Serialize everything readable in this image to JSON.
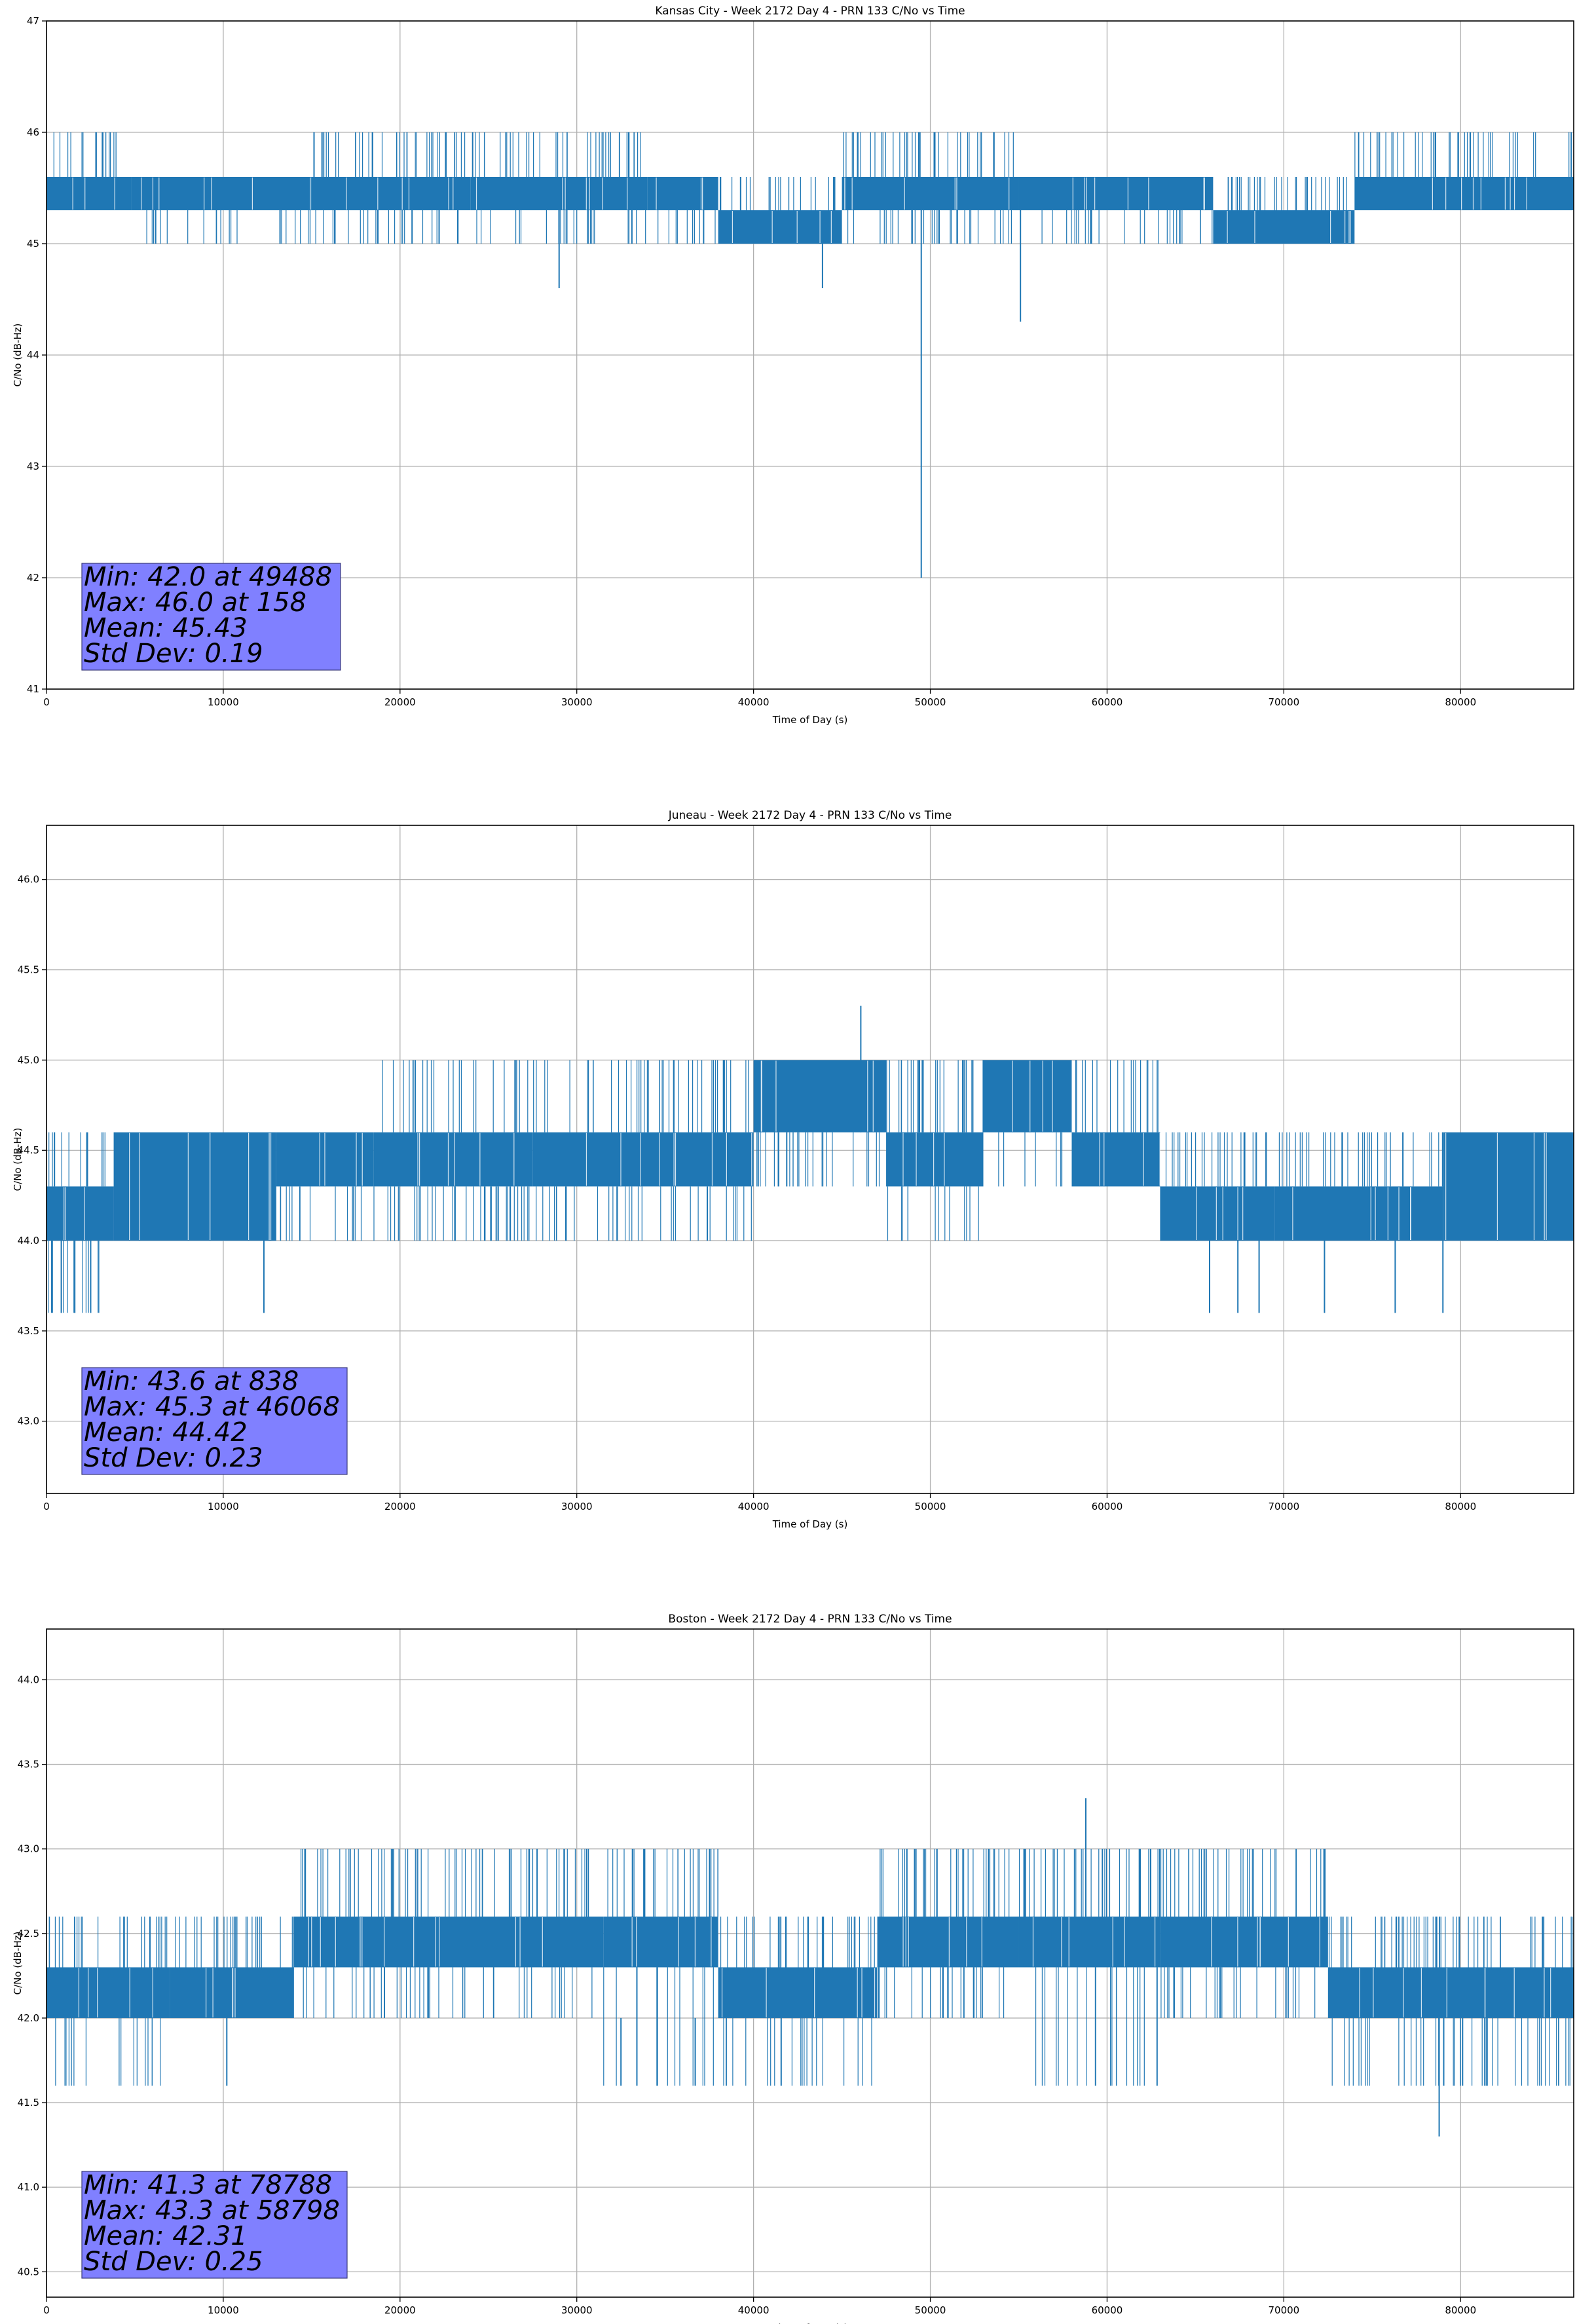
{
  "figure": {
    "colors": {
      "series": "#1f77b4",
      "stats_box": "#8080ff",
      "grid": "#b0b0b0"
    }
  },
  "chart_data": [
    {
      "type": "line",
      "title": "Kansas City - Week 2172 Day 4 - PRN 133 C/No vs Time",
      "xlabel": "Time of Day (s)",
      "ylabel": "C/No (dB-Hz)",
      "xlim": [
        0,
        86400
      ],
      "ylim": [
        41,
        47
      ],
      "xticks": [
        0,
        10000,
        20000,
        30000,
        40000,
        50000,
        60000,
        70000,
        80000
      ],
      "xtick_labels": [
        "0",
        "10000",
        "20000",
        "30000",
        "40000",
        "50000",
        "60000",
        "70000",
        "80000"
      ],
      "yticks": [
        41,
        42,
        43,
        44,
        45,
        46,
        47
      ],
      "ytick_labels": [
        "41",
        "42",
        "43",
        "44",
        "45",
        "46",
        "47"
      ],
      "grid": true,
      "series": [
        {
          "color": "#1f77b4",
          "levels": [
            45.0,
            45.3,
            45.6,
            46.0
          ],
          "segments": [
            {
              "x": [
                0,
                4800
              ],
              "low": 45.3,
              "high": 45.6,
              "spike_high": 46.0,
              "spike_low": 45.3
            },
            {
              "x": [
                4800,
                15000
              ],
              "low": 45.3,
              "high": 45.6,
              "spike_high": 45.6,
              "spike_low": 45.0
            },
            {
              "x": [
                15000,
                24000
              ],
              "low": 45.3,
              "high": 45.6,
              "spike_high": 46.0,
              "spike_low": 45.0
            },
            {
              "x": [
                24000,
                34000
              ],
              "low": 45.3,
              "high": 45.6,
              "spike_high": 46.0,
              "spike_low": 45.0
            },
            {
              "x": [
                34000,
                38000
              ],
              "low": 45.3,
              "high": 45.6,
              "spike_high": 45.6,
              "spike_low": 45.0
            },
            {
              "x": [
                38000,
                45000
              ],
              "low": 45.0,
              "high": 45.3,
              "spike_high": 45.6,
              "spike_low": 45.0
            },
            {
              "x": [
                45000,
                55000
              ],
              "low": 45.3,
              "high": 45.6,
              "spike_high": 46.0,
              "spike_low": 45.0
            },
            {
              "x": [
                55000,
                66000
              ],
              "low": 45.3,
              "high": 45.6,
              "spike_high": 45.6,
              "spike_low": 45.0
            },
            {
              "x": [
                66000,
                74000
              ],
              "low": 45.0,
              "high": 45.3,
              "spike_high": 45.6,
              "spike_low": 45.0
            },
            {
              "x": [
                74000,
                86400
              ],
              "low": 45.3,
              "high": 45.6,
              "spike_high": 46.0,
              "spike_low": 45.3
            }
          ],
          "dips": [
            {
              "x": 29000,
              "y": 44.6
            },
            {
              "x": 43900,
              "y": 44.6
            },
            {
              "x": 49488,
              "y": 42.0
            },
            {
              "x": 55100,
              "y": 44.3
            }
          ],
          "peaks": []
        }
      ],
      "annotation": {
        "lines": [
          "Min: 42.0 at 49488",
          "Max: 46.0 at 158",
          "Mean: 45.43",
          "Std Dev: 0.19"
        ],
        "min": {
          "value": 42.0,
          "time": 49488
        },
        "max": {
          "value": 46.0,
          "time": 158
        },
        "mean": 45.43,
        "std_dev": 0.19
      }
    },
    {
      "type": "line",
      "title": "Juneau - Week 2172 Day 4 - PRN 133 C/No vs Time",
      "xlabel": "Time of Day (s)",
      "ylabel": "C/No (dB-Hz)",
      "xlim": [
        0,
        86400
      ],
      "ylim": [
        42.6,
        46.3
      ],
      "xticks": [
        0,
        10000,
        20000,
        30000,
        40000,
        50000,
        60000,
        70000,
        80000
      ],
      "xtick_labels": [
        "0",
        "10000",
        "20000",
        "30000",
        "40000",
        "50000",
        "60000",
        "70000",
        "80000"
      ],
      "yticks": [
        43.0,
        43.5,
        44.0,
        44.5,
        45.0,
        45.5,
        46.0
      ],
      "ytick_labels": [
        "43.0",
        "43.5",
        "44.0",
        "44.5",
        "45.0",
        "45.5",
        "46.0"
      ],
      "grid": true,
      "series": [
        {
          "color": "#1f77b4",
          "levels": [
            43.6,
            44.0,
            44.3,
            44.6,
            45.0
          ],
          "segments": [
            {
              "x": [
                0,
                3800
              ],
              "low": 44.0,
              "high": 44.3,
              "spike_high": 44.6,
              "spike_low": 43.6
            },
            {
              "x": [
                3800,
                13000
              ],
              "low": 44.0,
              "high": 44.6,
              "spike_high": 44.6,
              "spike_low": 44.0
            },
            {
              "x": [
                13000,
                18500
              ],
              "low": 44.3,
              "high": 44.6,
              "spike_high": 44.6,
              "spike_low": 44.0
            },
            {
              "x": [
                18500,
                27500
              ],
              "low": 44.3,
              "high": 44.6,
              "spike_high": 45.0,
              "spike_low": 44.0
            },
            {
              "x": [
                27500,
                40000
              ],
              "low": 44.3,
              "high": 44.6,
              "spike_high": 45.0,
              "spike_low": 44.0
            },
            {
              "x": [
                40000,
                47500
              ],
              "low": 44.6,
              "high": 45.0,
              "spike_high": 45.0,
              "spike_low": 44.3
            },
            {
              "x": [
                47500,
                53000
              ],
              "low": 44.3,
              "high": 44.6,
              "spike_high": 45.0,
              "spike_low": 44.0
            },
            {
              "x": [
                53000,
                58000
              ],
              "low": 44.6,
              "high": 45.0,
              "spike_high": 45.0,
              "spike_low": 44.3
            },
            {
              "x": [
                58000,
                63000
              ],
              "low": 44.3,
              "high": 44.6,
              "spike_high": 45.0,
              "spike_low": 44.3
            },
            {
              "x": [
                63000,
                69500
              ],
              "low": 44.0,
              "high": 44.3,
              "spike_high": 44.6,
              "spike_low": 44.0
            },
            {
              "x": [
                69500,
                79000
              ],
              "low": 44.0,
              "high": 44.3,
              "spike_high": 44.6,
              "spike_low": 44.0
            },
            {
              "x": [
                79000,
                86400
              ],
              "low": 44.0,
              "high": 44.6,
              "spike_high": 44.6,
              "spike_low": 44.0
            }
          ],
          "dips": [
            {
              "x": 838,
              "y": 43.6
            },
            {
              "x": 1600,
              "y": 43.6
            },
            {
              "x": 2500,
              "y": 43.6
            },
            {
              "x": 12300,
              "y": 43.6
            },
            {
              "x": 65800,
              "y": 43.6
            },
            {
              "x": 67400,
              "y": 43.6
            },
            {
              "x": 68600,
              "y": 43.6
            },
            {
              "x": 72300,
              "y": 43.6
            },
            {
              "x": 76300,
              "y": 43.6
            },
            {
              "x": 79000,
              "y": 43.6
            }
          ],
          "peaks": [
            {
              "x": 46068,
              "y": 45.3
            }
          ]
        }
      ],
      "annotation": {
        "lines": [
          "Min: 43.6 at 838",
          "Max: 45.3 at 46068",
          "Mean: 44.42",
          "Std Dev: 0.23"
        ],
        "min": {
          "value": 43.6,
          "time": 838
        },
        "max": {
          "value": 45.3,
          "time": 46068
        },
        "mean": 44.42,
        "std_dev": 0.23
      }
    },
    {
      "type": "line",
      "title": "Boston - Week 2172 Day 4 - PRN 133 C/No vs Time",
      "xlabel": "Time of Day (s)",
      "ylabel": "C/No (dB-Hz)",
      "xlim": [
        0,
        86400
      ],
      "ylim": [
        40.35,
        44.3
      ],
      "xticks": [
        0,
        10000,
        20000,
        30000,
        40000,
        50000,
        60000,
        70000,
        80000
      ],
      "xtick_labels": [
        "0",
        "10000",
        "20000",
        "30000",
        "40000",
        "50000",
        "60000",
        "70000",
        "80000"
      ],
      "yticks": [
        40.5,
        41.0,
        41.5,
        42.0,
        42.5,
        43.0,
        43.5,
        44.0
      ],
      "ytick_labels": [
        "40.5",
        "41.0",
        "41.5",
        "42.0",
        "42.5",
        "43.0",
        "43.5",
        "44.0"
      ],
      "grid": true,
      "series": [
        {
          "color": "#1f77b4",
          "levels": [
            41.6,
            42.0,
            42.3,
            42.6,
            43.0
          ],
          "segments": [
            {
              "x": [
                0,
                7000
              ],
              "low": 42.0,
              "high": 42.3,
              "spike_high": 42.6,
              "spike_low": 41.6
            },
            {
              "x": [
                7000,
                14000
              ],
              "low": 42.0,
              "high": 42.3,
              "spike_high": 42.6,
              "spike_low": 42.0
            },
            {
              "x": [
                14000,
                31500
              ],
              "low": 42.3,
              "high": 42.6,
              "spike_high": 43.0,
              "spike_low": 42.0
            },
            {
              "x": [
                31500,
                38000
              ],
              "low": 42.3,
              "high": 42.6,
              "spike_high": 43.0,
              "spike_low": 41.6
            },
            {
              "x": [
                38000,
                47000
              ],
              "low": 42.0,
              "high": 42.3,
              "spike_high": 42.6,
              "spike_low": 41.6
            },
            {
              "x": [
                47000,
                55000
              ],
              "low": 42.3,
              "high": 42.6,
              "spike_high": 43.0,
              "spike_low": 42.0
            },
            {
              "x": [
                55000,
                63000
              ],
              "low": 42.3,
              "high": 42.6,
              "spike_high": 43.0,
              "spike_low": 41.6
            },
            {
              "x": [
                63000,
                72500
              ],
              "low": 42.3,
              "high": 42.6,
              "spike_high": 43.0,
              "spike_low": 42.0
            },
            {
              "x": [
                72500,
                86400
              ],
              "low": 42.0,
              "high": 42.3,
              "spike_high": 42.6,
              "spike_low": 41.6
            }
          ],
          "dips": [
            {
              "x": 10200,
              "y": 41.6
            },
            {
              "x": 32500,
              "y": 41.6
            },
            {
              "x": 36700,
              "y": 41.6
            },
            {
              "x": 78788,
              "y": 41.3
            }
          ],
          "peaks": [
            {
              "x": 58798,
              "y": 43.3
            }
          ]
        }
      ],
      "annotation": {
        "lines": [
          "Min: 41.3 at 78788",
          "Max: 43.3 at 58798",
          "Mean: 42.31",
          "Std Dev: 0.25"
        ],
        "min": {
          "value": 41.3,
          "time": 78788
        },
        "max": {
          "value": 43.3,
          "time": 58798
        },
        "mean": 42.31,
        "std_dev": 0.25
      }
    }
  ]
}
